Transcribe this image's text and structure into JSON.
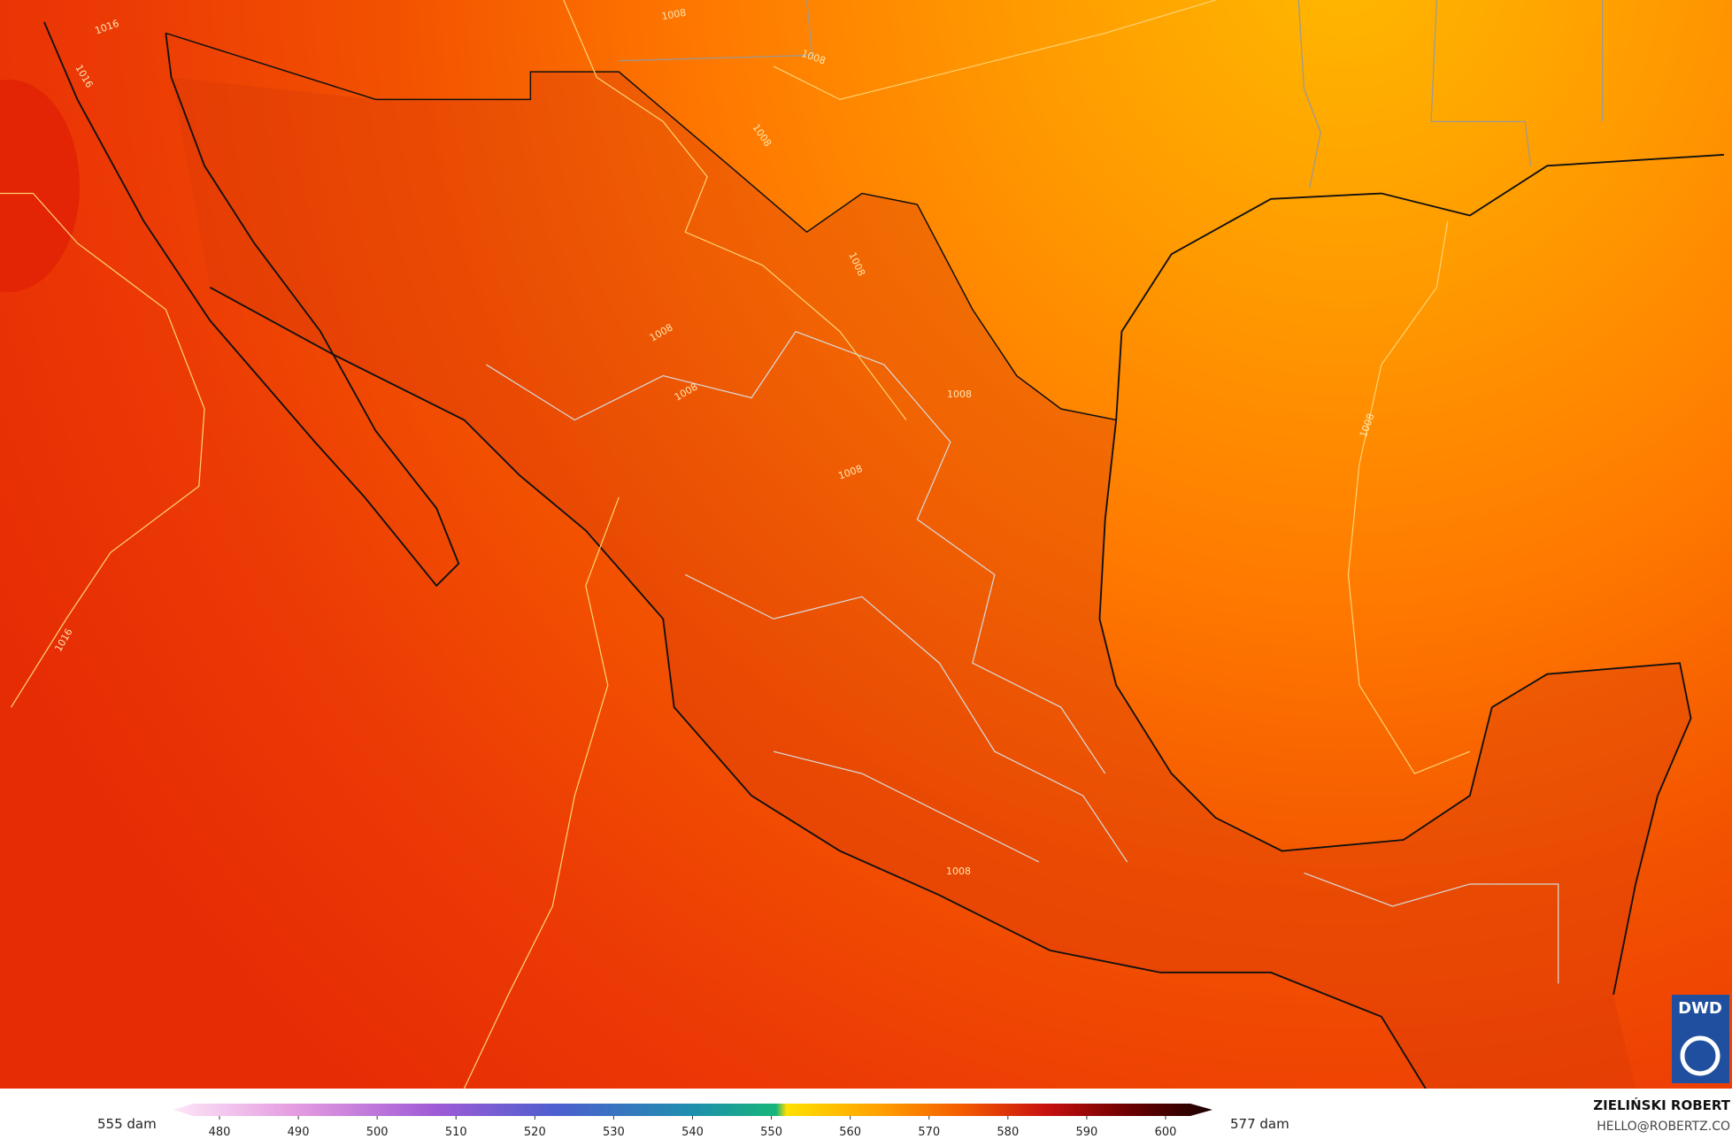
{
  "map": {
    "contour_labels": [
      {
        "text": "1016"
      },
      {
        "text": "1016"
      },
      {
        "text": "1016"
      },
      {
        "text": "1008"
      },
      {
        "text": "1008"
      },
      {
        "text": "1008"
      },
      {
        "text": "1008"
      },
      {
        "text": "1008"
      },
      {
        "text": "1008"
      },
      {
        "text": "1008"
      },
      {
        "text": "1008"
      },
      {
        "text": "1008"
      },
      {
        "text": "1008"
      }
    ]
  },
  "legend": {
    "min_label": "555 dam",
    "max_label": "577 dam",
    "ticks": [
      480,
      490,
      500,
      510,
      520,
      530,
      540,
      550,
      560,
      570,
      580,
      590,
      600
    ]
  },
  "credits": {
    "author": "ZIELIŃSKI ROBERT",
    "email": "HELLO@ROBERTZ.CO",
    "logo": "DWD"
  }
}
